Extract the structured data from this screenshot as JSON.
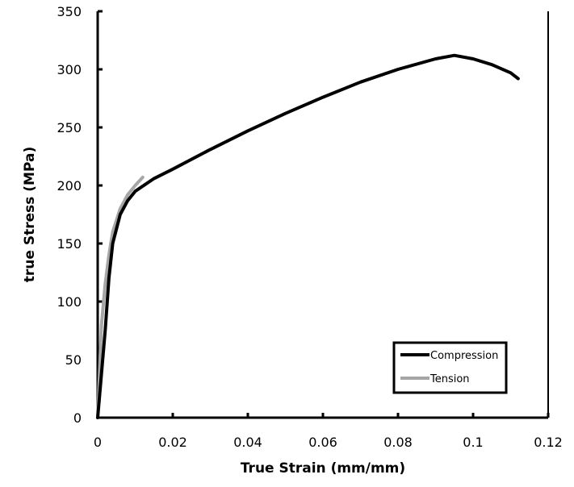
{
  "chart_data": {
    "type": "line",
    "title": "",
    "xlabel": "True Strain (mm/mm)",
    "ylabel": "true Stress (MPa)",
    "xlim": [
      0,
      0.12
    ],
    "ylim": [
      0,
      350
    ],
    "xticks": [
      "0",
      "0.02",
      "0.04",
      "0.06",
      "0.08",
      "0.1",
      "0.12"
    ],
    "yticks": [
      "0",
      "50",
      "100",
      "150",
      "200",
      "250",
      "300",
      "350"
    ],
    "grid": false,
    "legend": "bottom-right",
    "series": [
      {
        "name": "Compression",
        "color": "#000000",
        "x": [
          0,
          0.002,
          0.003,
          0.004,
          0.006,
          0.008,
          0.01,
          0.015,
          0.02,
          0.03,
          0.04,
          0.05,
          0.06,
          0.07,
          0.08,
          0.09,
          0.095,
          0.1,
          0.105,
          0.11,
          0.112
        ],
        "y": [
          0,
          75,
          120,
          150,
          175,
          187,
          195,
          206,
          214,
          231,
          247,
          262,
          276,
          289,
          300,
          309,
          312,
          309,
          304,
          297,
          292
        ]
      },
      {
        "name": "Tension",
        "color": "#a6a6a6",
        "x": [
          0,
          0.001,
          0.002,
          0.003,
          0.004,
          0.006,
          0.008,
          0.01,
          0.012
        ],
        "y": [
          0,
          80,
          115,
          140,
          160,
          180,
          192,
          200,
          207
        ]
      }
    ]
  }
}
